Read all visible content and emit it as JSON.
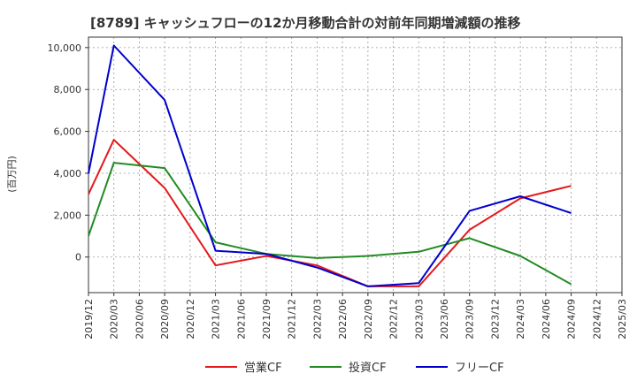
{
  "chart_data": {
    "type": "line",
    "title": "[8789]  キャッシュフローの12か月移動合計の対前年同期増減額の推移",
    "xlabel": "",
    "ylabel": "(百万円)",
    "ylim": [
      -1700,
      10500
    ],
    "yticks": [
      0,
      2000,
      4000,
      6000,
      8000,
      10000
    ],
    "ytick_labels": [
      "0",
      "2,000",
      "4,000",
      "6,000",
      "8,000",
      "10,000"
    ],
    "grid": true,
    "legend_position": "bottom",
    "x": [
      "2019/12",
      "2020/03",
      "2020/06",
      "2020/09",
      "2020/12",
      "2021/03",
      "2021/06",
      "2021/09",
      "2021/12",
      "2022/03",
      "2022/06",
      "2022/09",
      "2022/12",
      "2023/03",
      "2023/06",
      "2023/09",
      "2023/12",
      "2024/03",
      "2024/06",
      "2024/09",
      "2024/12",
      "2025/03"
    ],
    "series": [
      {
        "name": "営業CF",
        "color": "#e41a1c",
        "values": [
          3000,
          5600,
          null,
          3300,
          null,
          -400,
          null,
          50,
          null,
          -400,
          null,
          -1400,
          null,
          -1400,
          null,
          1300,
          null,
          2800,
          null,
          3400,
          null,
          null
        ]
      },
      {
        "name": "投資CF",
        "color": "#228b22",
        "values": [
          1000,
          4500,
          null,
          4250,
          null,
          700,
          null,
          150,
          null,
          -50,
          null,
          50,
          null,
          250,
          null,
          900,
          null,
          50,
          null,
          -1300,
          null,
          null
        ]
      },
      {
        "name": "フリーCF",
        "color": "#0000cd",
        "values": [
          4000,
          10100,
          null,
          7500,
          null,
          300,
          null,
          150,
          null,
          -500,
          null,
          -1400,
          null,
          -1250,
          null,
          2200,
          null,
          2900,
          null,
          2100,
          null,
          null
        ]
      }
    ]
  }
}
